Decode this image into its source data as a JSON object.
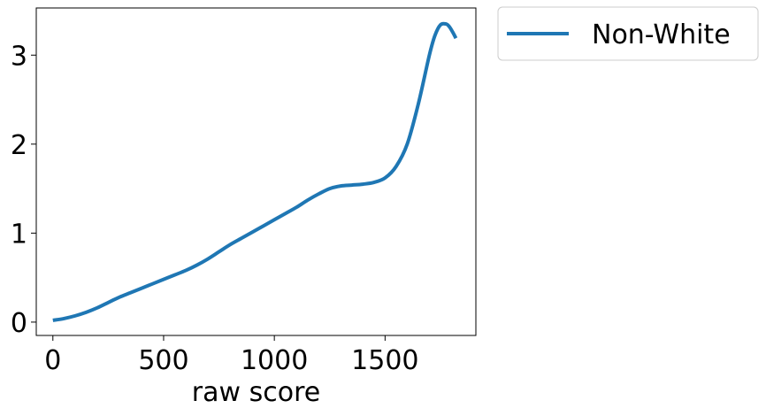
{
  "chart_data": {
    "type": "line",
    "title": "",
    "xlabel": "raw score",
    "ylabel": "",
    "xlim": [
      -75,
      1910
    ],
    "ylim": [
      -0.15,
      3.53
    ],
    "xticks": [
      0,
      500,
      1000,
      1500
    ],
    "xtick_labels": [
      "0",
      "500",
      "1000",
      "1500"
    ],
    "yticks": [
      0,
      1,
      2,
      3
    ],
    "ytick_labels": [
      "0",
      "1",
      "2",
      "3"
    ],
    "grid": false,
    "legend_position": "outside-top-right",
    "series": [
      {
        "name": "Non-White",
        "color": "#1f77b4",
        "x": [
          0,
          50,
          100,
          150,
          200,
          250,
          300,
          350,
          400,
          450,
          500,
          550,
          600,
          650,
          700,
          750,
          800,
          850,
          900,
          950,
          1000,
          1050,
          1100,
          1150,
          1200,
          1250,
          1300,
          1350,
          1400,
          1450,
          1500,
          1550,
          1600,
          1650,
          1700,
          1725,
          1750,
          1775,
          1790,
          1805,
          1820
        ],
        "y": [
          0.02,
          0.04,
          0.07,
          0.11,
          0.16,
          0.22,
          0.28,
          0.33,
          0.38,
          0.43,
          0.48,
          0.53,
          0.58,
          0.64,
          0.71,
          0.79,
          0.87,
          0.94,
          1.01,
          1.08,
          1.15,
          1.22,
          1.29,
          1.37,
          1.44,
          1.5,
          1.53,
          1.54,
          1.55,
          1.57,
          1.62,
          1.75,
          2.0,
          2.45,
          3.0,
          3.22,
          3.34,
          3.35,
          3.32,
          3.26,
          3.19
        ]
      }
    ]
  }
}
